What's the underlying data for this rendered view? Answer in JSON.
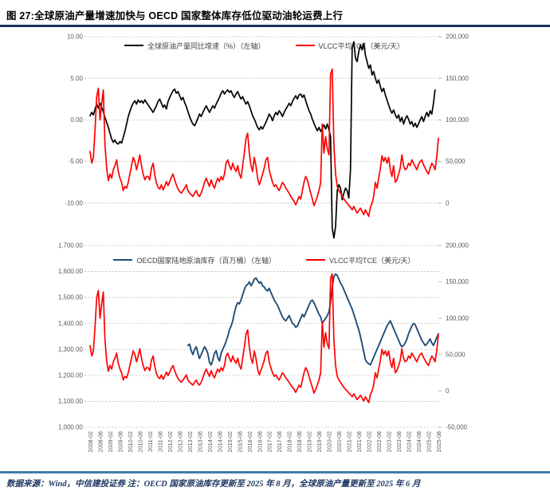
{
  "page": {
    "title": "图 27:全球原油产量增速加快与 OECD 国家整体库存低位驱动油轮运费上行",
    "source_note": "数据来源：Wind，中信建投证券 注：OECD 国家原油库存更新至 2025 年 8 月，全球原油产量更新至 2025 年 6 月"
  },
  "x_axis": {
    "start": "2008-02",
    "end": "2025-08",
    "tick_interval_months": 6,
    "tick_labels": [
      "2008-02",
      "2008-08",
      "2009-02",
      "2009-08",
      "2010-02",
      "2010-08",
      "2011-02",
      "2011-08",
      "2012-02",
      "2012-08",
      "2013-02",
      "2013-08",
      "2014-02",
      "2014-08",
      "2015-02",
      "2015-08",
      "2016-02",
      "2016-08",
      "2017-02",
      "2017-08",
      "2018-02",
      "2018-08",
      "2019-02",
      "2019-08",
      "2020-02",
      "2020-08",
      "2021-02",
      "2021-08",
      "2022-02",
      "2022-08",
      "2023-02",
      "2023-08",
      "2024-02",
      "2024-08",
      "2025-02",
      "2025-08"
    ]
  },
  "chart_data": [
    {
      "type": "line",
      "legend": [
        {
          "label": "全球原油产量同比增速（%）（左轴）",
          "color": "#000000"
        },
        {
          "label": "VLCC平均TCE（美元/天）",
          "color": "#FF0000"
        }
      ],
      "left_axis": {
        "min": -15,
        "max": 10,
        "ticks": [
          10,
          5,
          0,
          -5,
          -10
        ],
        "labels": [
          "10.00",
          "5.00",
          "0.00",
          "-5.00",
          "-10.00"
        ]
      },
      "right_axis": {
        "min": -50000,
        "max": 200000,
        "ticks": [
          200000,
          150000,
          100000,
          50000,
          0
        ],
        "labels": [
          "200,000",
          "150,000",
          "100,000",
          "50,000",
          "0"
        ]
      },
      "series": [
        {
          "name": "全球原油产量同比增速",
          "axis": "left",
          "color": "#000000",
          "width": 1.7,
          "start_month": "2008-02",
          "data_ref": "production_yoy_pct"
        },
        {
          "name": "VLCC平均TCE",
          "axis": "right",
          "color": "#FF0000",
          "width": 1.7,
          "start_month": "2008-02",
          "data_ref": "vlcc_tce_usd_day"
        }
      ]
    },
    {
      "type": "line",
      "legend": [
        {
          "label": "OECD国家陆地原油库存（百万桶）（左轴）",
          "color": "#1F4E79"
        },
        {
          "label": "VLCC平均TCE（美元/天）",
          "color": "#FF0000"
        }
      ],
      "left_axis": {
        "min": 1000,
        "max": 1700,
        "ticks": [
          1700,
          1600,
          1500,
          1400,
          1300,
          1200,
          1100,
          1000
        ],
        "labels": [
          "1,700.00",
          "1,600.00",
          "1,500.00",
          "1,400.00",
          "1,300.00",
          "1,200.00",
          "1,100.00",
          "1,000.00"
        ]
      },
      "right_axis": {
        "min": -50000,
        "max": 200000,
        "ticks": [
          200000,
          150000,
          100000,
          50000,
          0,
          -50000
        ],
        "labels": [
          "200,000",
          "150,000",
          "100,000",
          "50,000",
          "0",
          "-50,000"
        ]
      },
      "series": [
        {
          "name": "OECD国家陆地原油库存",
          "axis": "left",
          "color": "#1F4E79",
          "width": 1.9,
          "start_month": "2013-01",
          "data_ref": "oecd_land_crude_inventory_mb"
        },
        {
          "name": "VLCC平均TCE",
          "axis": "right",
          "color": "#FF0000",
          "width": 1.7,
          "start_month": "2008-02",
          "data_ref": "vlcc_tce_usd_day"
        }
      ]
    }
  ],
  "series_data": {
    "production_yoy_pct": [
      0.5,
      0.9,
      0.6,
      1.3,
      1.9,
      1.4,
      2.0,
      1.5,
      1.0,
      0.3,
      -0.3,
      -0.9,
      -1.6,
      -2.3,
      -2.7,
      -2.4,
      -2.8,
      -2.9,
      -2.6,
      -2.8,
      -2.1,
      -1.4,
      -0.5,
      0.4,
      1.0,
      1.6,
      2.0,
      2.3,
      1.9,
      2.4,
      2.1,
      2.3,
      2.0,
      2.4,
      2.1,
      1.8,
      1.5,
      1.2,
      0.9,
      1.3,
      1.7,
      2.2,
      2.5,
      2.0,
      1.5,
      1.8,
      1.3,
      2.2,
      2.7,
      3.1,
      3.5,
      3.7,
      3.2,
      3.4,
      2.9,
      2.4,
      2.7,
      2.1,
      1.6,
      1.0,
      0.4,
      -0.1,
      -0.5,
      -0.7,
      -0.3,
      0.2,
      0.7,
      0.4,
      0.9,
      1.3,
      1.7,
      1.3,
      0.9,
      1.3,
      1.7,
      1.4,
      1.9,
      2.3,
      2.7,
      3.2,
      3.5,
      3.1,
      3.4,
      3.6,
      3.3,
      3.5,
      3.0,
      2.7,
      3.1,
      3.4,
      2.9,
      2.5,
      2.8,
      2.3,
      1.9,
      2.2,
      1.7,
      1.1,
      0.5,
      0.1,
      -0.4,
      -0.9,
      -1.2,
      -0.8,
      -1.1,
      -0.7,
      -0.3,
      0.2,
      0.7,
      0.4,
      -0.1,
      0.5,
      0.9,
      0.6,
      1.1,
      0.8,
      0.4,
      0.9,
      1.3,
      1.6,
      2.0,
      1.7,
      2.2,
      2.6,
      2.9,
      2.5,
      3.0,
      3.1,
      2.7,
      3.0,
      2.3,
      1.7,
      1.1,
      0.7,
      0.1,
      -0.4,
      -0.9,
      -1.3,
      -0.9,
      -1.4,
      -1.0,
      -0.6,
      -1.1,
      -0.5,
      -1.2,
      -2.0,
      -13.0,
      -14.2,
      -12.8,
      -8.5,
      -7.8,
      -8.2,
      -9.6,
      -8.8,
      -8.2,
      -8.5,
      -9.4,
      -6.0,
      8.6,
      9.4,
      7.4,
      7.0,
      8.2,
      9.0,
      8.4,
      9.2,
      7.8,
      7.0,
      6.2,
      6.6,
      5.4,
      5.8,
      5.0,
      4.4,
      4.8,
      4.0,
      3.4,
      3.8,
      3.0,
      2.4,
      1.8,
      1.2,
      0.8,
      1.2,
      0.6,
      0.2,
      0.6,
      -0.2,
      0.3,
      -0.5,
      0.1,
      0.5,
      0.1,
      -0.5,
      -0.2,
      -0.8,
      -0.4,
      -0.9,
      -0.5,
      0.0,
      0.4,
      -0.2,
      0.4,
      0.9,
      0.4,
      1.1,
      0.7,
      2.0,
      3.6
    ],
    "vlcc_tce_usd_day": [
      62000,
      48000,
      55000,
      88000,
      128000,
      138000,
      100000,
      120000,
      136000,
      70000,
      42000,
      27000,
      35000,
      30000,
      40000,
      45000,
      52000,
      38000,
      30000,
      25000,
      15000,
      20000,
      18000,
      25000,
      35000,
      45000,
      55000,
      50000,
      40000,
      48000,
      58000,
      45000,
      35000,
      28000,
      32000,
      32000,
      28000,
      42000,
      48000,
      34000,
      24000,
      19000,
      17000,
      22000,
      16000,
      20000,
      26000,
      21000,
      26000,
      31000,
      35000,
      28000,
      22000,
      17000,
      14000,
      12000,
      15000,
      18000,
      22000,
      15000,
      12000,
      10000,
      8000,
      12000,
      15000,
      10000,
      8000,
      12000,
      18000,
      25000,
      30000,
      25000,
      20000,
      28000,
      22000,
      18000,
      25000,
      30000,
      26000,
      32000,
      28000,
      35000,
      48000,
      52000,
      45000,
      40000,
      48000,
      42000,
      38000,
      45000,
      35000,
      30000,
      45000,
      60000,
      78000,
      84000,
      60000,
      45000,
      38000,
      55000,
      45000,
      30000,
      22000,
      28000,
      35000,
      42000,
      52000,
      55000,
      40000,
      32000,
      25000,
      20000,
      22000,
      18000,
      15000,
      20000,
      25000,
      22000,
      18000,
      15000,
      12000,
      8000,
      5000,
      2000,
      -2000,
      3000,
      8000,
      5000,
      15000,
      25000,
      32000,
      28000,
      20000,
      12000,
      5000,
      -3000,
      2000,
      8000,
      15000,
      25000,
      95000,
      60000,
      80000,
      65000,
      58000,
      155000,
      161000,
      70000,
      35000,
      20000,
      15000,
      12000,
      8000,
      5000,
      2000,
      0,
      -3000,
      -5000,
      -8000,
      -4000,
      -8000,
      -12000,
      -9000,
      -6000,
      -10000,
      -14000,
      -8000,
      -12000,
      -16000,
      -5000,
      0,
      8000,
      25000,
      18000,
      30000,
      42000,
      57000,
      50000,
      55000,
      48000,
      55000,
      40000,
      32000,
      45000,
      25000,
      28000,
      35000,
      42000,
      58000,
      45000,
      40000,
      42000,
      48000,
      45000,
      52000,
      48000,
      44000,
      40000,
      46000,
      50000,
      52000,
      46000,
      42000,
      38000,
      35000,
      42000,
      48000,
      45000,
      40000,
      55000,
      78000
    ],
    "oecd_land_crude_inventory_mb": [
      1315,
      1320,
      1295,
      1280,
      1300,
      1310,
      1285,
      1265,
      1280,
      1295,
      1310,
      1300,
      1285,
      1250,
      1240,
      1260,
      1285,
      1295,
      1270,
      1255,
      1285,
      1300,
      1315,
      1330,
      1350,
      1375,
      1390,
      1410,
      1440,
      1465,
      1480,
      1475,
      1490,
      1510,
      1530,
      1545,
      1550,
      1560,
      1545,
      1555,
      1570,
      1575,
      1565,
      1555,
      1560,
      1545,
      1540,
      1530,
      1525,
      1535,
      1520,
      1505,
      1490,
      1480,
      1470,
      1455,
      1440,
      1425,
      1415,
      1410,
      1420,
      1430,
      1415,
      1400,
      1395,
      1385,
      1390,
      1405,
      1420,
      1435,
      1425,
      1440,
      1455,
      1470,
      1485,
      1490,
      1480,
      1465,
      1450,
      1435,
      1425,
      1400,
      1410,
      1420,
      1430,
      1445,
      1480,
      1540,
      1580,
      1590,
      1585,
      1570,
      1555,
      1545,
      1530,
      1515,
      1500,
      1485,
      1470,
      1455,
      1435,
      1415,
      1395,
      1375,
      1350,
      1320,
      1290,
      1260,
      1250,
      1245,
      1240,
      1255,
      1270,
      1285,
      1300,
      1315,
      1330,
      1345,
      1360,
      1375,
      1390,
      1400,
      1410,
      1395,
      1380,
      1365,
      1350,
      1335,
      1320,
      1310,
      1315,
      1325,
      1340,
      1360,
      1375,
      1390,
      1400,
      1395,
      1380,
      1365,
      1350,
      1335,
      1325,
      1315,
      1320,
      1330,
      1340,
      1325,
      1315,
      1330,
      1345,
      1360
    ]
  }
}
